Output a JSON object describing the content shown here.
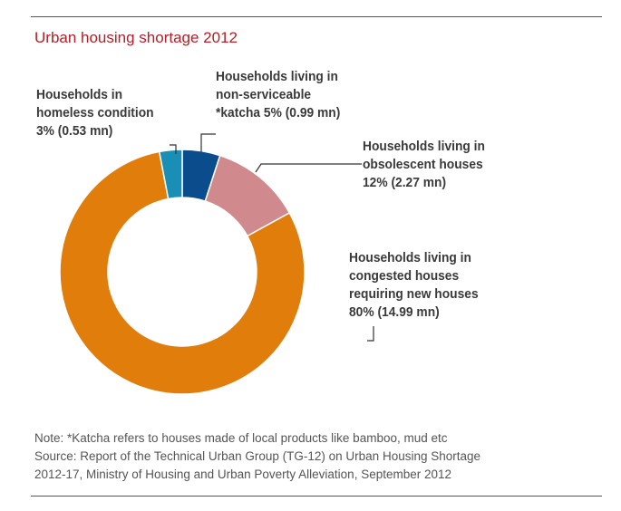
{
  "title": "Urban housing shortage 2012",
  "chart_data": {
    "type": "pie",
    "title": "Urban housing shortage 2012",
    "donut": true,
    "start": "top",
    "direction": "clockwise",
    "slices": [
      {
        "lines": [
          "Households living in",
          "non-serviceable",
          "*katcha  5% (0.99 mn)"
        ],
        "percent": 5,
        "value_mn": 0.99,
        "color": "#0a4c8c"
      },
      {
        "lines": [
          "Households living in",
          "obsolescent houses",
          "12% (2.27 mn)"
        ],
        "percent": 12,
        "value_mn": 2.27,
        "color": "#d08a8e"
      },
      {
        "lines": [
          "Households living in",
          "congested houses",
          "requiring new houses",
          "80% (14.99 mn)"
        ],
        "percent": 80,
        "value_mn": 14.99,
        "color": "#e07d0b"
      },
      {
        "lines": [
          "Households in",
          "homeless condition",
          "3% (0.53 mn)"
        ],
        "percent": 3,
        "value_mn": 0.53,
        "color": "#1a8fb5"
      }
    ]
  },
  "notes": {
    "line1": "Note: *Katcha refers to houses made of local products like bamboo, mud etc",
    "line2": "Source: Report of the Technical Urban Group (TG-12) on Urban Housing Shortage",
    "line3": "2012-17, Ministry of Housing and Urban Poverty Alleviation, September 2012"
  }
}
